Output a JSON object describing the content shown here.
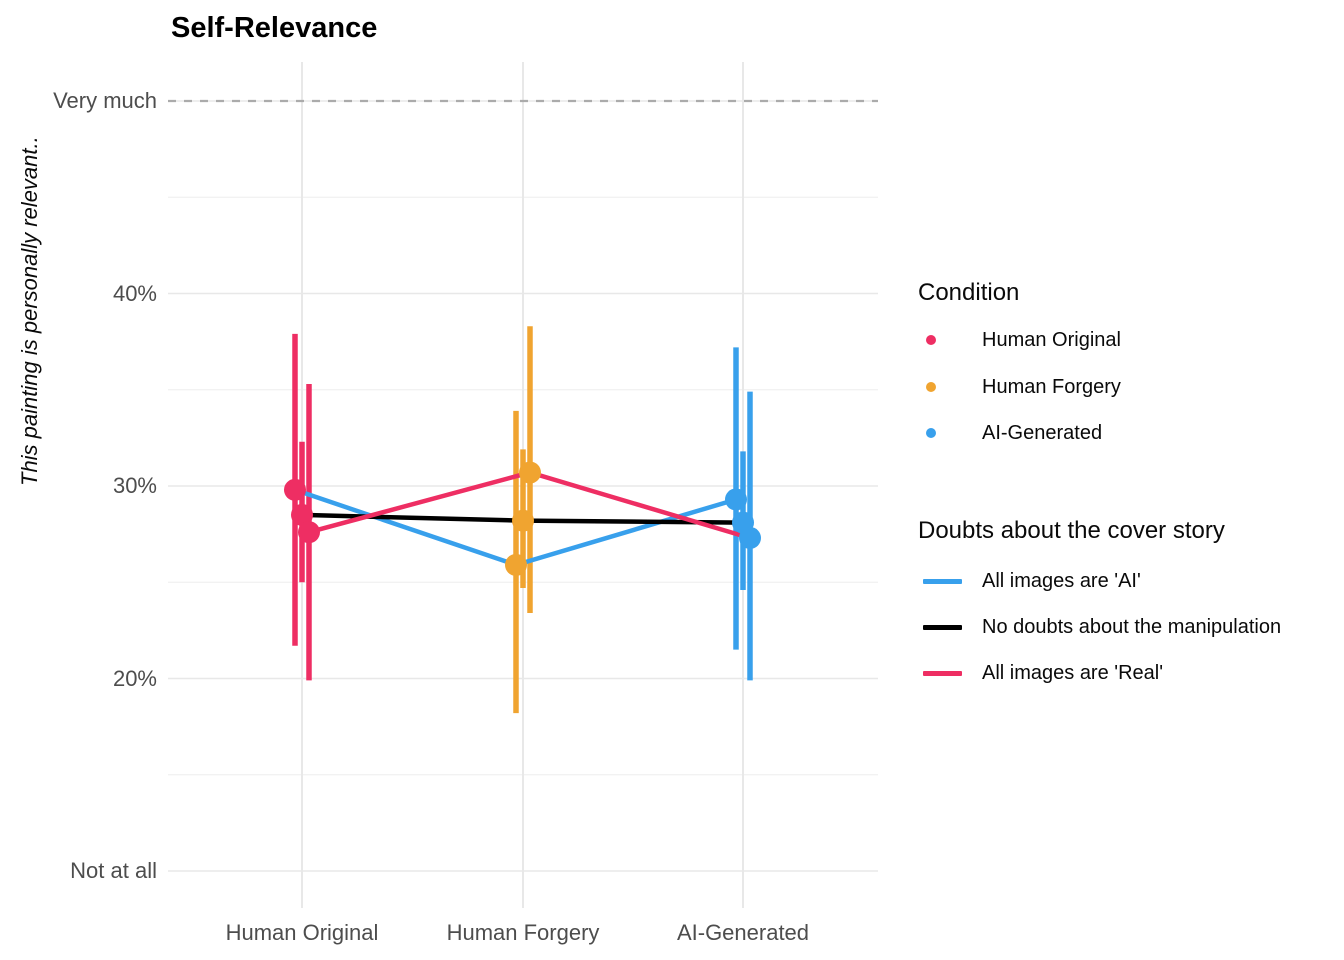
{
  "title": "Self-Relevance",
  "legend_condition": {
    "title": "Condition",
    "items": [
      {
        "label": "Human Original",
        "color": "#EE2E63"
      },
      {
        "label": "Human Forgery",
        "color": "#F0A430"
      },
      {
        "label": "AI-Generated",
        "color": "#38A0EC"
      }
    ]
  },
  "legend_doubts": {
    "title": "Doubts about the cover story",
    "items": [
      {
        "label": "All images are 'AI'",
        "color": "#38A0EC"
      },
      {
        "label": "No doubts about the manipulation",
        "color": "#000000"
      },
      {
        "label": "All images are 'Real'",
        "color": "#EE2E63"
      }
    ]
  },
  "chart_data": {
    "type": "line",
    "title": "Self-Relevance",
    "ylabel": "This painting is personally relevant..",
    "xlabel": "",
    "categories": [
      "Human Original",
      "Human Forgery",
      "AI-Generated"
    ],
    "category_point_colors": [
      "#EE2E63",
      "#F0A430",
      "#38A0EC"
    ],
    "y_ticks": [
      {
        "value": 10,
        "label": "Not at all"
      },
      {
        "value": 20,
        "label": "20%"
      },
      {
        "value": 30,
        "label": "30%"
      },
      {
        "value": 40,
        "label": "40%"
      },
      {
        "value": 50,
        "label": "Very much"
      }
    ],
    "y_minor_ticks": [
      15,
      25,
      35,
      45
    ],
    "ylim": [
      8,
      52.5
    ],
    "reference_line": {
      "value": 50,
      "label": "Very much",
      "style": "dashed",
      "color": "#ABABAB"
    },
    "grid": true,
    "legend_position": "right",
    "series": [
      {
        "name": "All images are 'AI'",
        "color": "#38A0EC",
        "values": [
          29.8,
          25.9,
          29.3
        ],
        "ci_low": [
          21.7,
          18.2,
          21.5
        ],
        "ci_high": [
          37.9,
          33.9,
          37.2
        ]
      },
      {
        "name": "No doubts about the manipulation",
        "color": "#000000",
        "values": [
          28.5,
          28.2,
          28.1
        ],
        "ci_low": [
          25.0,
          24.7,
          24.6
        ],
        "ci_high": [
          32.3,
          31.9,
          31.8
        ]
      },
      {
        "name": "All images are 'Real'",
        "color": "#EE2E63",
        "values": [
          27.6,
          30.7,
          27.3
        ],
        "ci_low": [
          19.9,
          23.4,
          19.9
        ],
        "ci_high": [
          35.3,
          38.3,
          34.9
        ]
      }
    ]
  }
}
